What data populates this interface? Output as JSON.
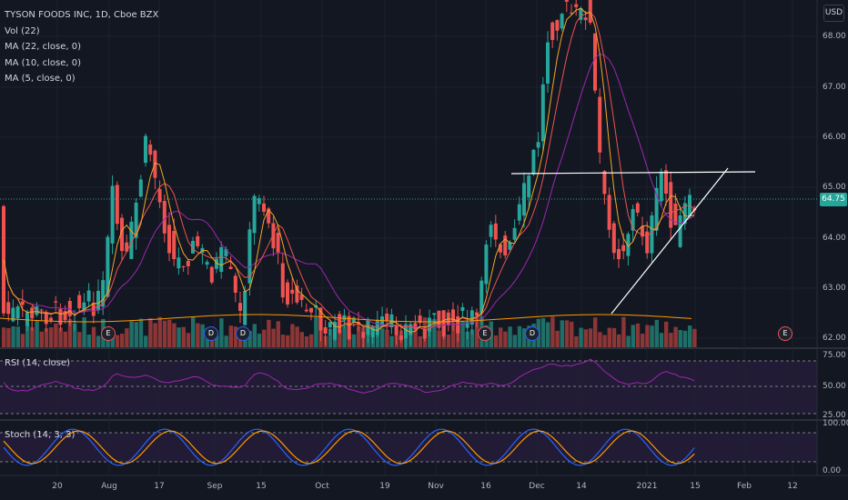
{
  "legend": {
    "symbol_line": "TYSON FOODS INC, 1D, Cboe BZX",
    "volume": "Vol (22)",
    "ma22": "MA (22, close, 0)",
    "ma10": "MA (10, close, 0)",
    "ma5": "MA (5, close, 0)"
  },
  "currency": "USD",
  "last_price": "64.75",
  "price_axis": [
    "68.00",
    "67.00",
    "66.00",
    "65.00",
    "64.00",
    "63.00",
    "62.00"
  ],
  "rsi": {
    "label": "RSI (14, close)",
    "axis": [
      "75.00",
      "50.00",
      "25.00"
    ]
  },
  "stoch": {
    "label": "Stoch (14, 3, 3)",
    "axis": [
      "100.00",
      "0.00"
    ]
  },
  "time_axis": [
    "20",
    "Aug",
    "17",
    "Sep",
    "15",
    "Oct",
    "19",
    "Nov",
    "16",
    "Dec",
    "14",
    "2021",
    "15",
    "Feb",
    "12"
  ],
  "events": [
    {
      "type": "earnings",
      "letter": "E"
    },
    {
      "type": "dividend",
      "letter": "D"
    },
    {
      "type": "dividend",
      "letter": "D"
    },
    {
      "type": "earnings",
      "letter": "E"
    },
    {
      "type": "dividend",
      "letter": "D"
    },
    {
      "type": "earnings",
      "letter": "E"
    }
  ],
  "colors": {
    "background": "#131722",
    "up": "#26a69a",
    "down": "#ef5350",
    "ma22": "#9c27b0",
    "ma10": "#ef5350",
    "ma5": "#f5a623",
    "rsi_line": "#9c27b0",
    "stoch_k": "#2962ff",
    "stoch_d": "#ff9800"
  }
}
